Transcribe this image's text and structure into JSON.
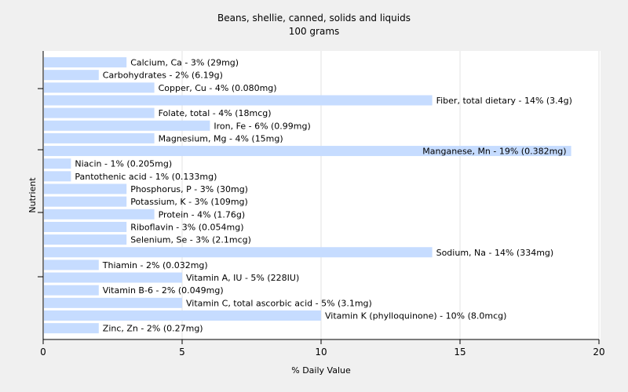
{
  "chart_data": {
    "type": "bar",
    "orientation": "horizontal",
    "title": "Beans, shellie, canned, solids and liquids",
    "subtitle": "100 grams",
    "xlabel": "% Daily Value",
    "ylabel": "Nutrient",
    "xlim": [
      0,
      20
    ],
    "xticks": [
      "0",
      "5",
      "10",
      "15",
      "20"
    ],
    "grid": "vertical",
    "bar_color": "#c6dcff",
    "categories": [
      "Calcium, Ca",
      "Carbohydrates",
      "Copper, Cu",
      "Fiber, total dietary",
      "Folate, total",
      "Iron, Fe",
      "Magnesium, Mg",
      "Manganese, Mn",
      "Niacin",
      "Pantothenic acid",
      "Phosphorus, P",
      "Potassium, K",
      "Protein",
      "Riboflavin",
      "Selenium, Se",
      "Sodium, Na",
      "Thiamin",
      "Vitamin A, IU",
      "Vitamin B-6",
      "Vitamin C, total ascorbic acid",
      "Vitamin K (phylloquinone)",
      "Zinc, Zn"
    ],
    "values": [
      3,
      2,
      4,
      14,
      4,
      6,
      4,
      19,
      1,
      1,
      3,
      3,
      4,
      3,
      3,
      14,
      2,
      5,
      2,
      5,
      10,
      2
    ],
    "labels": [
      "Calcium, Ca - 3% (29mg)",
      "Carbohydrates - 2% (6.19g)",
      "Copper, Cu - 4% (0.080mg)",
      "Fiber, total dietary - 14% (3.4g)",
      "Folate, total - 4% (18mcg)",
      "Iron, Fe - 6% (0.99mg)",
      "Magnesium, Mg - 4% (15mg)",
      "Manganese, Mn - 19% (0.382mg)",
      "Niacin - 1% (0.205mg)",
      "Pantothenic acid - 1% (0.133mg)",
      "Phosphorus, P - 3% (30mg)",
      "Potassium, K - 3% (109mg)",
      "Protein - 4% (1.76g)",
      "Riboflavin - 3% (0.054mg)",
      "Selenium, Se - 3% (2.1mcg)",
      "Sodium, Na - 14% (334mg)",
      "Thiamin - 2% (0.032mg)",
      "Vitamin A, IU - 5% (228IU)",
      "Vitamin B-6 - 2% (0.049mg)",
      "Vitamin C, total ascorbic acid - 5% (3.1mg)",
      "Vitamin K (phylloquinone) - 10% (8.0mcg)",
      "Zinc, Zn - 2% (0.27mg)"
    ]
  }
}
